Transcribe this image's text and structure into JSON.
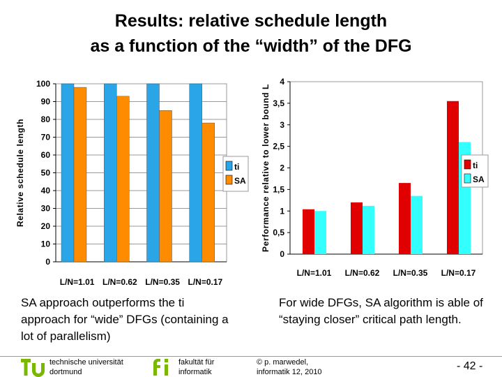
{
  "title": {
    "line1": "Results: relative schedule length",
    "line2": "as a function of the “width” of the DFG"
  },
  "colors": {
    "ti": "#2aa6e8",
    "SA": "#ff8c00",
    "ti2": "#e10000",
    "SA2": "#33ffff"
  },
  "chart_data": [
    {
      "type": "bar",
      "ylabel": "Relative schedule length",
      "xlabel": "",
      "categories": [
        "L/N=1.01",
        "L/N=0.62",
        "L/N=0.35",
        "L/N=0.17"
      ],
      "series": [
        {
          "name": "ti",
          "values": [
            100,
            100,
            100,
            100
          ]
        },
        {
          "name": "SA",
          "values": [
            98,
            93,
            85,
            78
          ]
        }
      ],
      "yticks": [
        "0",
        "10",
        "20",
        "30",
        "40",
        "50",
        "60",
        "70",
        "80",
        "90",
        "100"
      ],
      "ylim": [
        0,
        100
      ],
      "legend": "right"
    },
    {
      "type": "bar",
      "ylabel": "Performance relative to lower bound L",
      "xlabel": "",
      "categories": [
        "L/N=1.01",
        "L/N=0.62",
        "L/N=0.35",
        "L/N=0.17"
      ],
      "series": [
        {
          "name": "ti",
          "values": [
            1.04,
            1.2,
            1.65,
            3.55
          ]
        },
        {
          "name": "SA",
          "values": [
            1.0,
            1.12,
            1.35,
            2.6
          ]
        }
      ],
      "yticks": [
        "0",
        "0,5",
        "1",
        "1,5",
        "2",
        "2,5",
        "3",
        "3,5",
        "4"
      ],
      "ylim": [
        0,
        4
      ],
      "legend": "right"
    }
  ],
  "captions": {
    "left": "SA approach outperforms the ti approach for “wide” DFGs (containing a lot of parallelism)",
    "right": "For wide DFGs, SA algorithm is able of “staying closer” critical path length."
  },
  "footer": {
    "tu_line1": "technische universität",
    "tu_line2": "dortmund",
    "fi_line1": "fakultät für",
    "fi_line2": "informatik",
    "author_line1": "© p. marwedel,",
    "author_line2": "informatik 12,  2010",
    "page": "-  42 -"
  }
}
